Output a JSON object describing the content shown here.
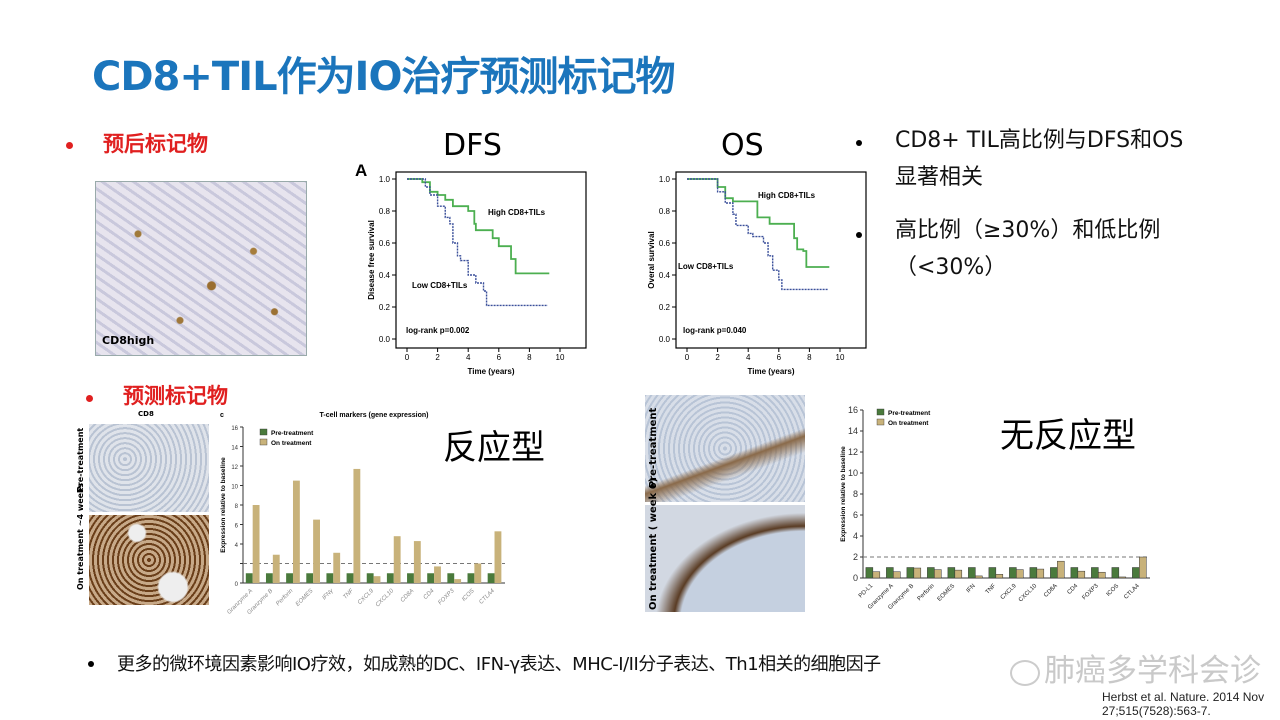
{
  "title": "CD8+TIL作为IO治疗预测标记物",
  "section1": {
    "label": "预后标记物",
    "image_label": "CD8high"
  },
  "km_headers": {
    "dfs": "DFS",
    "os": "OS"
  },
  "right_bullets": [
    {
      "line1": "CD8+ TIL高比例与DFS和OS",
      "line2": "显著相关"
    },
    {
      "line1": "高比例（≥30%）和低比例",
      "line2": "（<30%）"
    }
  ],
  "section2": {
    "label": "预测标记物",
    "image_title": "CD8",
    "pre_label": "Pre-treatment",
    "on_label": "On treatment ~4 weeks"
  },
  "responder_label": "反应型",
  "nonresponder_label": "无反应型",
  "nonresponder_images": {
    "pre_label": "Pre-treatment",
    "on_label": "On treatment ( week 6)"
  },
  "bottom_bullet": "更多的微环境因素影响IO疗效，如成熟的DC、IFN-γ表达、MHC-I/II分子表达、Th1相关的细胞因子",
  "watermark": "肺癌多学科会诊",
  "citation": "Herbst et al. Nature. 2014 Nov 27;515(7528):563-7.",
  "colors": {
    "title": "#1b75bc",
    "red": "#e02020",
    "high": "#4caf50",
    "low": "#3a4f9a",
    "pre": "#4a7a3c",
    "on": "#c8b27a"
  },
  "chart_data": [
    {
      "type": "line",
      "panel_label": "A",
      "title": "DFS",
      "xlabel": "Time (years)",
      "ylabel": "Disease free survival",
      "xlim": [
        0,
        10
      ],
      "ylim": [
        0,
        1
      ],
      "xticks": [
        0,
        2,
        4,
        6,
        8,
        10
      ],
      "yticks": [
        "0.0",
        "0.2",
        "0.4",
        "0.6",
        "0.8",
        "1.0"
      ],
      "annotation": "log-rank p=0.002",
      "series": [
        {
          "name": "High CD8+TILs",
          "x": [
            0,
            1,
            1.5,
            2,
            2.5,
            3,
            4,
            4.4,
            4.5,
            5.5,
            5.6,
            6,
            6.8,
            7.1,
            9.3
          ],
          "y": [
            1,
            0.98,
            0.92,
            0.9,
            0.87,
            0.83,
            0.8,
            0.72,
            0.68,
            0.68,
            0.63,
            0.58,
            0.5,
            0.41,
            0.41
          ]
        },
        {
          "name": "Low CD8+TILs",
          "x": [
            0,
            1.2,
            1.5,
            2,
            2.5,
            2.8,
            3,
            3.3,
            3.5,
            4,
            4.5,
            5,
            5.2,
            9.2
          ],
          "y": [
            1,
            0.95,
            0.9,
            0.83,
            0.76,
            0.72,
            0.6,
            0.52,
            0.49,
            0.4,
            0.35,
            0.3,
            0.21,
            0.21
          ]
        }
      ]
    },
    {
      "type": "line",
      "title": "OS",
      "xlabel": "Time (years)",
      "ylabel": "Overal survival",
      "xlim": [
        0,
        10
      ],
      "ylim": [
        0,
        1
      ],
      "xticks": [
        0,
        2,
        4,
        6,
        8,
        10
      ],
      "yticks": [
        "0.0",
        "0.2",
        "0.4",
        "0.6",
        "0.8",
        "1.0"
      ],
      "annotation": "log-rank p=0.040",
      "series": [
        {
          "name": "High CD8+TILs",
          "x": [
            0,
            1.5,
            2,
            2.5,
            3,
            4.5,
            4.6,
            5.4,
            6.9,
            7,
            7.2,
            7.6,
            7.8,
            9.3
          ],
          "y": [
            1,
            1,
            0.95,
            0.88,
            0.86,
            0.86,
            0.76,
            0.72,
            0.72,
            0.63,
            0.56,
            0.55,
            0.45,
            0.45
          ]
        },
        {
          "name": "Low CD8+TILs",
          "x": [
            0,
            1.6,
            2,
            2.5,
            3,
            3.2,
            4,
            4.3,
            5,
            5.3,
            5.6,
            6,
            6.2,
            9.2
          ],
          "y": [
            1,
            1,
            0.92,
            0.85,
            0.78,
            0.71,
            0.66,
            0.64,
            0.6,
            0.52,
            0.43,
            0.37,
            0.31,
            0.31
          ]
        }
      ]
    },
    {
      "type": "bar",
      "panel_label": "c",
      "title": "T-cell markers (gene expression)",
      "ylabel": "Expression relative to baseline",
      "ylim": [
        0,
        16
      ],
      "yticks": [
        0,
        2,
        4,
        6,
        8,
        10,
        12,
        14,
        16
      ],
      "ytick_labels": [
        "0",
        "",
        "4",
        "6",
        "8",
        "10",
        "12",
        "14",
        "16"
      ],
      "reference_line": 2,
      "categories": [
        "Granzyme A",
        "Granzyme B",
        "Perforin",
        "EOMES",
        "IFNγ",
        "TNF",
        "CXCL9",
        "CXCL10",
        "CD8A",
        "CD4",
        "FOXP3",
        "ICOS",
        "CTLA4"
      ],
      "series": [
        {
          "name": "Pre-treatment",
          "values": [
            1,
            1,
            1,
            1,
            1,
            1,
            1,
            1,
            1,
            1,
            1,
            1,
            1
          ]
        },
        {
          "name": "On treatment",
          "values": [
            8.0,
            2.9,
            10.5,
            6.5,
            3.1,
            11.7,
            0.7,
            4.8,
            4.3,
            1.7,
            0.4,
            2.0,
            5.3
          ]
        }
      ]
    },
    {
      "type": "bar",
      "title": "",
      "ylabel": "Expression relative to baseline",
      "ylim": [
        0,
        16
      ],
      "yticks": [
        0,
        2,
        4,
        6,
        8,
        10,
        12,
        14,
        16
      ],
      "ytick_labels": [
        "0",
        "2",
        "4",
        "6",
        "8",
        "10",
        "12",
        "14",
        "16"
      ],
      "reference_line": 2,
      "categories": [
        "PD-L1",
        "Granzyme A",
        "Granzyme B",
        "Perforin",
        "EOMES",
        "IFN",
        "TNF",
        "CXCL9",
        "CXCL10",
        "CD8A",
        "CD4",
        "FOXP3",
        "ICOS",
        "CTLA4"
      ],
      "series": [
        {
          "name": "Pre-treatment",
          "values": [
            1,
            1,
            1,
            1,
            1,
            1,
            1,
            1,
            1,
            1,
            1,
            1,
            1,
            1
          ]
        },
        {
          "name": "On treatment",
          "values": [
            0.6,
            0.6,
            0.95,
            0.8,
            0.75,
            0.2,
            0.35,
            0.8,
            0.85,
            1.6,
            0.65,
            0.55,
            0.1,
            2.0
          ]
        }
      ]
    }
  ]
}
